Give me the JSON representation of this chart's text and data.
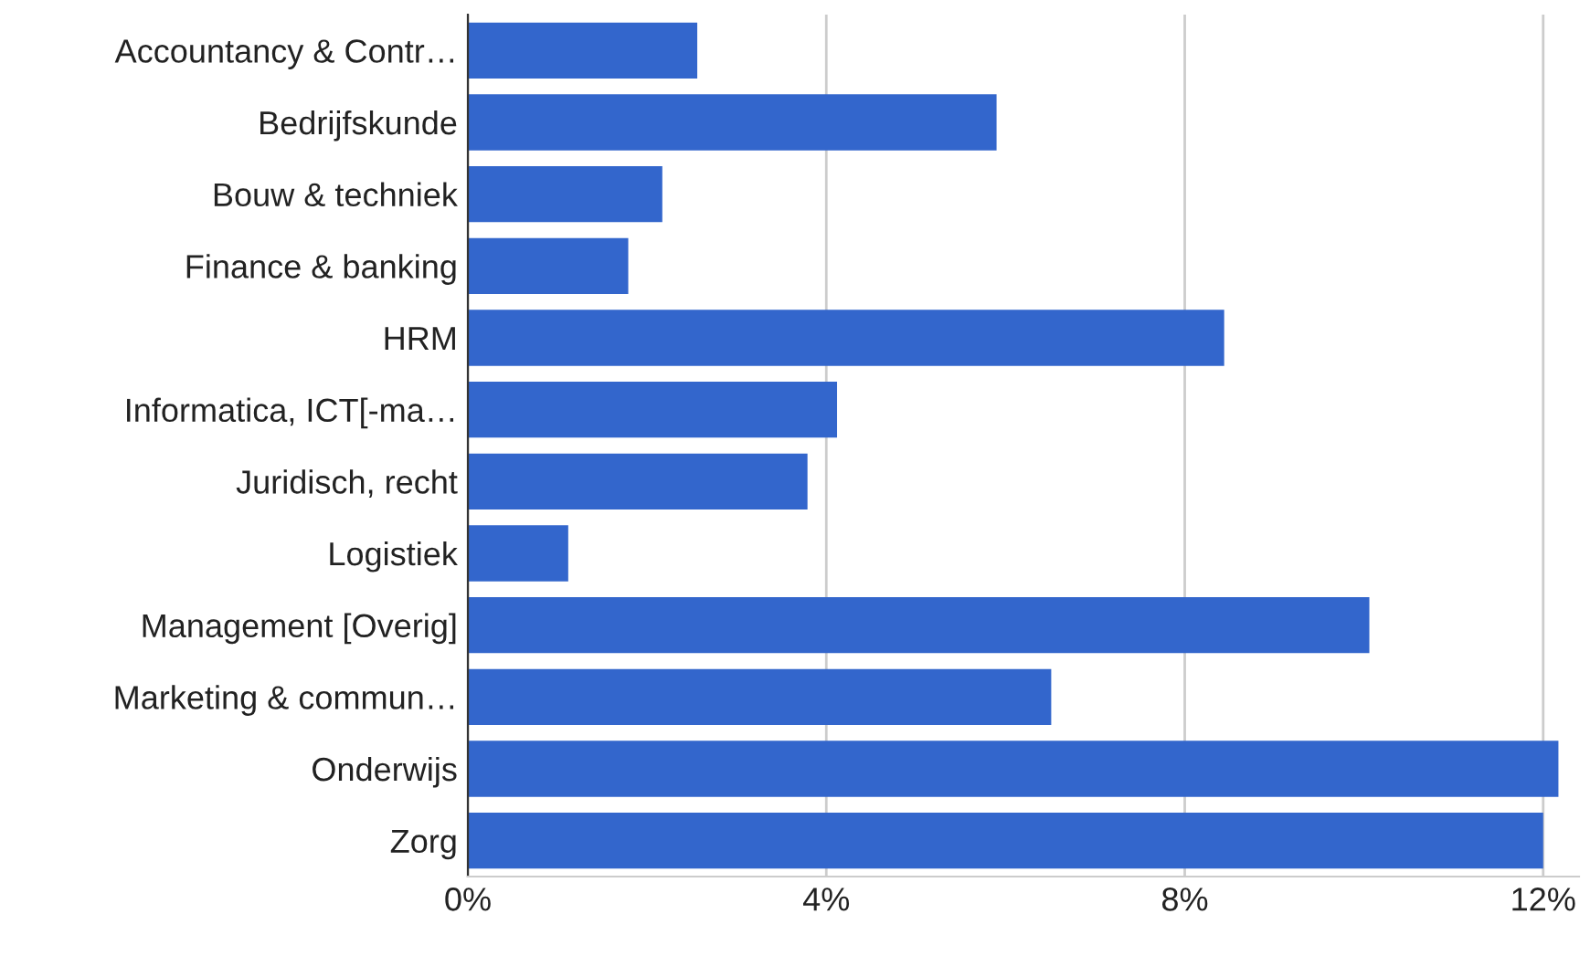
{
  "chart_data": {
    "type": "bar",
    "orientation": "horizontal",
    "categories": [
      "Accountancy & Contr…",
      "Bedrijfskunde",
      "Bouw & techniek",
      "Finance & banking",
      "HRM",
      "Informatica, ICT[-ma…",
      "Juridisch, recht",
      "Logistiek",
      "Management [Overig]",
      "Marketing & commun…",
      "Onderwijs",
      "Zorg"
    ],
    "values": [
      2.56,
      5.9,
      2.17,
      1.79,
      8.44,
      4.12,
      3.79,
      1.12,
      10.06,
      6.51,
      12.17,
      12.0
    ],
    "color": "#3366cc",
    "xlim": [
      0,
      12.4
    ],
    "xticks": [
      {
        "value": 0,
        "label": "0%"
      },
      {
        "value": 4,
        "label": "4%"
      },
      {
        "value": 8,
        "label": "8%"
      },
      {
        "value": 12,
        "label": "12%"
      }
    ],
    "grid": "x"
  }
}
